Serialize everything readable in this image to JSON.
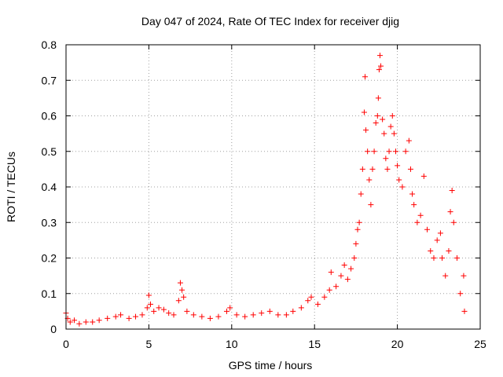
{
  "chart_data": {
    "type": "scatter",
    "title": "Day 047 of 2024, Rate Of TEC Index for receiver djig",
    "xlabel": "GPS time / hours",
    "ylabel": "ROTI / TECUs",
    "xlim": [
      0,
      25
    ],
    "ylim": [
      0,
      0.8
    ],
    "xticks": [
      "0",
      "5",
      "10",
      "15",
      "20",
      "25"
    ],
    "yticks": [
      "0",
      "0.1",
      "0.2",
      "0.3",
      "0.4",
      "0.5",
      "0.6",
      "0.7",
      "0.8"
    ],
    "grid": true,
    "marker": "plus",
    "color": "#ff0000",
    "series": [
      {
        "points": [
          [
            0.0,
            0.045
          ],
          [
            0.1,
            0.03
          ],
          [
            0.25,
            0.02
          ],
          [
            0.5,
            0.025
          ],
          [
            0.8,
            0.015
          ],
          [
            1.2,
            0.02
          ],
          [
            1.6,
            0.02
          ],
          [
            2.0,
            0.025
          ],
          [
            2.5,
            0.03
          ],
          [
            3.0,
            0.035
          ],
          [
            3.3,
            0.04
          ],
          [
            3.8,
            0.03
          ],
          [
            4.2,
            0.035
          ],
          [
            4.6,
            0.04
          ],
          [
            4.9,
            0.06
          ],
          [
            5.0,
            0.095
          ],
          [
            5.1,
            0.07
          ],
          [
            5.3,
            0.05
          ],
          [
            5.6,
            0.06
          ],
          [
            5.9,
            0.055
          ],
          [
            6.2,
            0.045
          ],
          [
            6.5,
            0.04
          ],
          [
            6.8,
            0.08
          ],
          [
            6.9,
            0.13
          ],
          [
            7.0,
            0.11
          ],
          [
            7.1,
            0.09
          ],
          [
            7.3,
            0.05
          ],
          [
            7.7,
            0.04
          ],
          [
            8.2,
            0.035
          ],
          [
            8.7,
            0.03
          ],
          [
            9.2,
            0.035
          ],
          [
            9.7,
            0.05
          ],
          [
            9.9,
            0.06
          ],
          [
            10.3,
            0.04
          ],
          [
            10.8,
            0.035
          ],
          [
            11.3,
            0.04
          ],
          [
            11.8,
            0.045
          ],
          [
            12.3,
            0.05
          ],
          [
            12.8,
            0.04
          ],
          [
            13.3,
            0.04
          ],
          [
            13.7,
            0.05
          ],
          [
            14.2,
            0.06
          ],
          [
            14.6,
            0.08
          ],
          [
            14.8,
            0.09
          ],
          [
            15.2,
            0.07
          ],
          [
            15.6,
            0.09
          ],
          [
            15.9,
            0.11
          ],
          [
            16.0,
            0.16
          ],
          [
            16.3,
            0.12
          ],
          [
            16.6,
            0.15
          ],
          [
            16.8,
            0.18
          ],
          [
            17.0,
            0.14
          ],
          [
            17.2,
            0.17
          ],
          [
            17.4,
            0.2
          ],
          [
            17.5,
            0.24
          ],
          [
            17.6,
            0.28
          ],
          [
            17.7,
            0.3
          ],
          [
            17.8,
            0.38
          ],
          [
            17.9,
            0.45
          ],
          [
            18.0,
            0.61
          ],
          [
            18.05,
            0.71
          ],
          [
            18.1,
            0.56
          ],
          [
            18.2,
            0.5
          ],
          [
            18.3,
            0.42
          ],
          [
            18.4,
            0.35
          ],
          [
            18.5,
            0.45
          ],
          [
            18.6,
            0.5
          ],
          [
            18.7,
            0.58
          ],
          [
            18.8,
            0.6
          ],
          [
            18.85,
            0.65
          ],
          [
            18.9,
            0.73
          ],
          [
            18.95,
            0.77
          ],
          [
            19.0,
            0.74
          ],
          [
            19.1,
            0.59
          ],
          [
            19.2,
            0.55
          ],
          [
            19.3,
            0.48
          ],
          [
            19.4,
            0.45
          ],
          [
            19.5,
            0.5
          ],
          [
            19.6,
            0.57
          ],
          [
            19.7,
            0.6
          ],
          [
            19.8,
            0.55
          ],
          [
            19.9,
            0.5
          ],
          [
            20.0,
            0.46
          ],
          [
            20.1,
            0.42
          ],
          [
            20.3,
            0.4
          ],
          [
            20.5,
            0.5
          ],
          [
            20.7,
            0.53
          ],
          [
            20.8,
            0.45
          ],
          [
            20.9,
            0.38
          ],
          [
            21.0,
            0.35
          ],
          [
            21.2,
            0.3
          ],
          [
            21.4,
            0.32
          ],
          [
            21.6,
            0.43
          ],
          [
            21.8,
            0.28
          ],
          [
            22.0,
            0.22
          ],
          [
            22.2,
            0.2
          ],
          [
            22.4,
            0.25
          ],
          [
            22.6,
            0.27
          ],
          [
            22.7,
            0.2
          ],
          [
            22.9,
            0.15
          ],
          [
            23.1,
            0.22
          ],
          [
            23.2,
            0.33
          ],
          [
            23.3,
            0.39
          ],
          [
            23.4,
            0.3
          ],
          [
            23.6,
            0.2
          ],
          [
            23.8,
            0.1
          ],
          [
            24.0,
            0.15
          ],
          [
            24.05,
            0.05
          ]
        ]
      }
    ]
  }
}
